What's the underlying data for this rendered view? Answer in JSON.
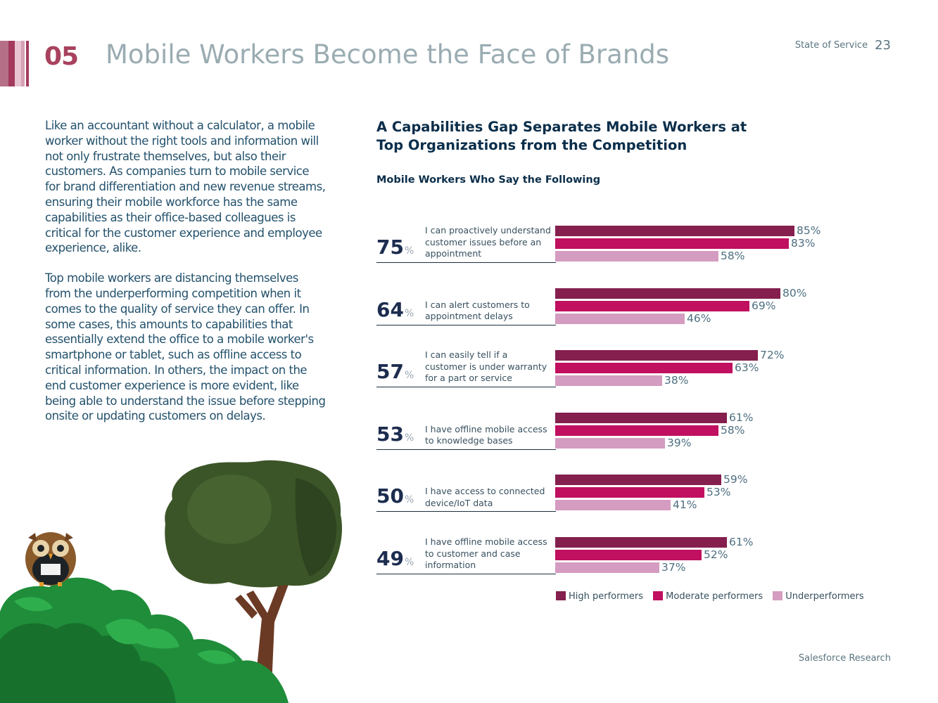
{
  "header": {
    "section_number": "05",
    "section_title": "Mobile Workers Become the Face of Brands",
    "report_name": "State of Service",
    "page_number": "23"
  },
  "body": {
    "paragraph_1": "Like an accountant without a calculator, a mobile worker without the right tools and information will not only frustrate themselves, but also their customers. As companies turn to mobile service for brand differentiation and new revenue streams, ensuring their mobile workforce has the same capabilities as their office-based colleagues is critical for the customer experience and employee experience, alike.",
    "paragraph_2": "Top mobile workers are distancing themselves from the underperforming competition when it comes to the quality of service they can offer. In some cases, this amounts to capabilities that essentially extend the office to a mobile worker's smartphone or tablet, such as offline access to critical information. In others, the impact on the end customer experience is more evident, like being able to understand the issue before stepping onsite or updating customers on delays."
  },
  "footer": {
    "text": "Salesforce Research"
  },
  "colors": {
    "high": "#841f4e",
    "moderate": "#c0105f",
    "under": "#d49cc0",
    "stripe_1": "#b56f86",
    "stripe_2": "#d6a2b5",
    "stripe_3": "#e8c4d2",
    "stripe_4": "#a33a5e"
  },
  "chart_data": {
    "type": "bar",
    "orientation": "horizontal",
    "title": "A Capabilities Gap Separates Mobile Workers at Top Organizations from the Competition",
    "subtitle": "Mobile Workers Who Say the Following",
    "xlim": [
      0,
      100
    ],
    "percent_symbol": "%",
    "categories": [
      {
        "statement": "I can proactively understand customer issues before an appointment",
        "total": 75,
        "total_label": "75"
      },
      {
        "statement": "I can alert customers to appointment delays",
        "total": 64,
        "total_label": "64"
      },
      {
        "statement": "I can easily tell if a customer is under warranty for a part or service",
        "total": 57,
        "total_label": "57"
      },
      {
        "statement": "I have offline mobile access to knowledge bases",
        "total": 53,
        "total_label": "53"
      },
      {
        "statement": "I have access to connected device/IoT data",
        "total": 50,
        "total_label": "50"
      },
      {
        "statement": "I have offline mobile access to customer and case information",
        "total": 49,
        "total_label": "49"
      }
    ],
    "series": [
      {
        "name": "High performers",
        "color": "#841f4e",
        "values": [
          85,
          80,
          72,
          61,
          59,
          61
        ],
        "labels": [
          "85%",
          "80%",
          "72%",
          "61%",
          "59%",
          "61%"
        ]
      },
      {
        "name": "Moderate performers",
        "color": "#c0105f",
        "values": [
          83,
          69,
          63,
          58,
          53,
          52
        ],
        "labels": [
          "83%",
          "69%",
          "63%",
          "58%",
          "53%",
          "52%"
        ]
      },
      {
        "name": "Underperformers",
        "color": "#d49cc0",
        "values": [
          58,
          46,
          38,
          39,
          41,
          37
        ],
        "labels": [
          "58%",
          "46%",
          "38%",
          "39%",
          "41%",
          "37%"
        ]
      }
    ],
    "legend": [
      "High performers",
      "Moderate performers",
      "Underperformers"
    ]
  }
}
